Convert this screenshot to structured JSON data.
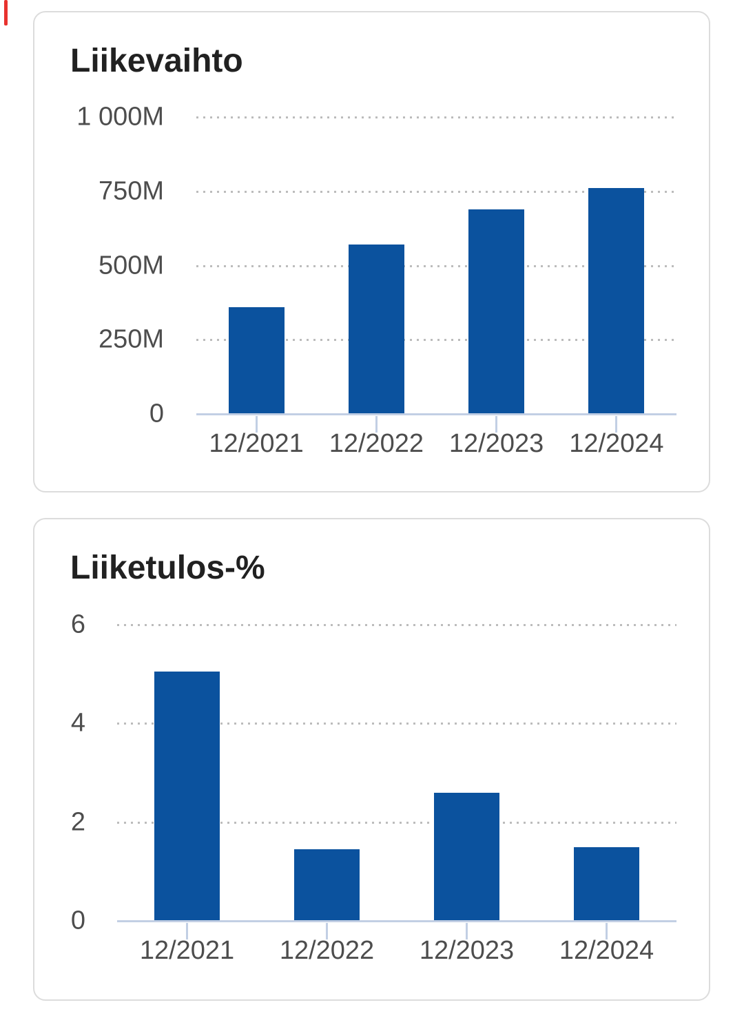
{
  "theme": {
    "bar_color": "#0b529e",
    "axis_line_color": "#c2cfe4",
    "grid_color": "#bcbcbc",
    "axis_label_color": "#4d4d4d",
    "title_color": "#212121",
    "card_border_color": "#dcdcdc",
    "background_color": "#ffffff",
    "edge_mark_color": "#e8322e"
  },
  "chart_data": [
    {
      "type": "bar",
      "title": "Liikevaihto",
      "categories": [
        "12/2021",
        "12/2022",
        "12/2023",
        "12/2024"
      ],
      "values": [
        360,
        570,
        690,
        760
      ],
      "ylim": [
        0,
        1000
      ],
      "ytick_values": [
        1000,
        750,
        500,
        250,
        0
      ],
      "ytick_labels": [
        "1 000M",
        "750M",
        "500M",
        "250M",
        "0"
      ],
      "xlabel": "",
      "ylabel": "",
      "legend": "none",
      "grid": "horizontal-dotted"
    },
    {
      "type": "bar",
      "title": "Liiketulos-%",
      "categories": [
        "12/2021",
        "12/2022",
        "12/2023",
        "12/2024"
      ],
      "values": [
        5.05,
        1.45,
        2.6,
        1.5
      ],
      "ylim": [
        0,
        6
      ],
      "ytick_values": [
        6,
        4,
        2,
        0
      ],
      "ytick_labels": [
        "6",
        "4",
        "2",
        "0"
      ],
      "xlabel": "",
      "ylabel": "",
      "legend": "none",
      "grid": "horizontal-dotted"
    }
  ]
}
